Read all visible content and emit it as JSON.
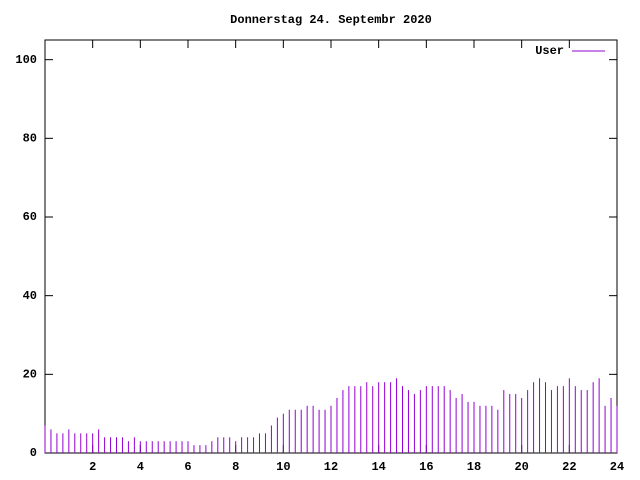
{
  "chart_data": {
    "type": "impulses",
    "title": "Donnerstag 24. Septembr 2020",
    "x": [
      0,
      0.25,
      0.5,
      0.75,
      1,
      1.25,
      1.5,
      1.75,
      2,
      2.25,
      2.5,
      2.75,
      3,
      3.25,
      3.5,
      3.75,
      4,
      4.25,
      4.5,
      4.75,
      5,
      5.25,
      5.5,
      5.75,
      6,
      6.25,
      6.5,
      6.75,
      7,
      7.25,
      7.5,
      7.75,
      8,
      8.25,
      8.5,
      8.75,
      9,
      9.25,
      9.5,
      9.75,
      10,
      10.25,
      10.5,
      10.75,
      11,
      11.25,
      11.5,
      11.75,
      12,
      12.25,
      12.5,
      12.75,
      13,
      13.25,
      13.5,
      13.75,
      14,
      14.25,
      14.5,
      14.75,
      15,
      15.25,
      15.5,
      15.75,
      16,
      16.25,
      16.5,
      16.75,
      17,
      17.25,
      17.5,
      17.75,
      18,
      18.25,
      18.5,
      18.75,
      19,
      19.25,
      19.5,
      19.75,
      20,
      20.25,
      20.5,
      20.75,
      21,
      21.25,
      21.5,
      21.75,
      22,
      22.25,
      22.5,
      22.75,
      23,
      23.25,
      23.5,
      23.75,
      24
    ],
    "series": [
      {
        "name": "User",
        "color": "#9400d3",
        "values": [
          7,
          6,
          5,
          5,
          6,
          5,
          5,
          5,
          5,
          6,
          4,
          4,
          4,
          4,
          3,
          4,
          3,
          3,
          3,
          3,
          3,
          3,
          3,
          3,
          3,
          2,
          2,
          2,
          3,
          4,
          4,
          4,
          3,
          4,
          4,
          4,
          5,
          5,
          7,
          9,
          10,
          11,
          11,
          11,
          12,
          12,
          11,
          11,
          12,
          14,
          16,
          17,
          17,
          17,
          18,
          17,
          18,
          18,
          18,
          19,
          17,
          16,
          15,
          16,
          17,
          17,
          17,
          17,
          16,
          14,
          15,
          13,
          13,
          12,
          12,
          12,
          11,
          16,
          15,
          15,
          14,
          16,
          18,
          19,
          18,
          16,
          17,
          17,
          19,
          17,
          16,
          16,
          18,
          19,
          12,
          14,
          12
        ]
      }
    ],
    "xlim": [
      0,
      24
    ],
    "ylim": [
      0,
      105
    ],
    "xticks": [
      2,
      4,
      6,
      8,
      10,
      12,
      14,
      16,
      18,
      20,
      22,
      24
    ],
    "yticks": [
      0,
      20,
      40,
      60,
      80,
      100
    ],
    "legend": "top-right"
  }
}
